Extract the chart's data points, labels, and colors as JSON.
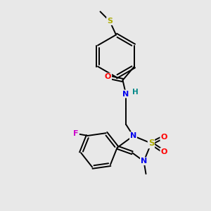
{
  "bg_color": "#e8e8e8",
  "atom_colors": {
    "C": "#000000",
    "N": "#0000ee",
    "O": "#ff0000",
    "S": "#aaaa00",
    "F": "#cc00cc",
    "H": "#008888"
  },
  "bond_color": "#000000",
  "bond_width": 1.4,
  "font_size": 7.5
}
